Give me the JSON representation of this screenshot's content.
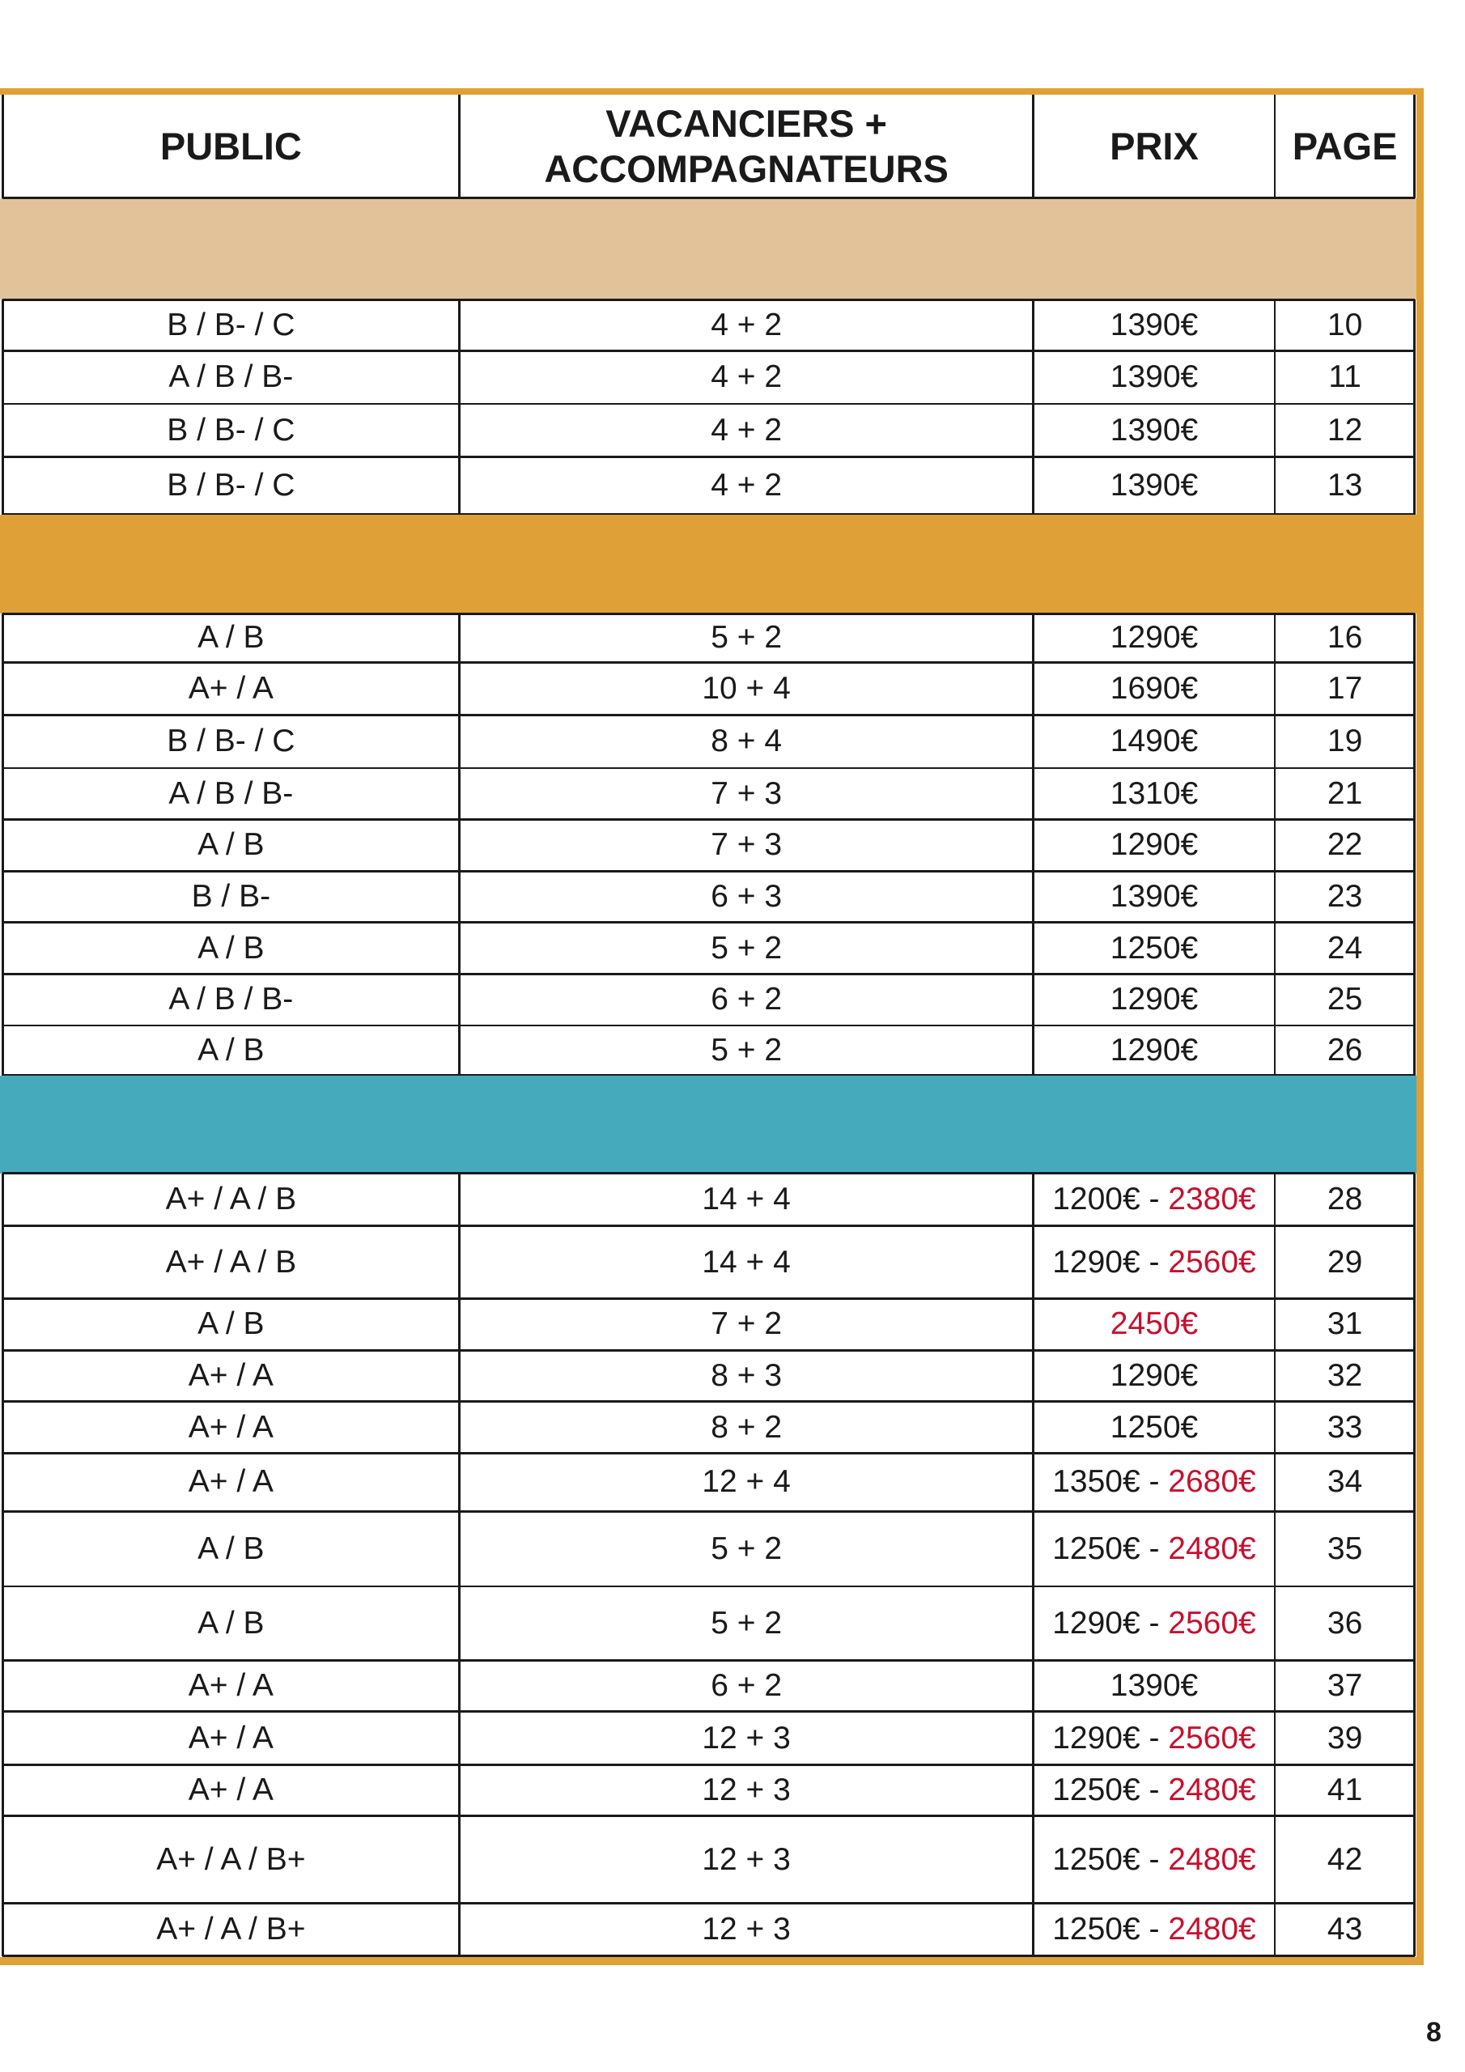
{
  "header": {
    "columns": [
      "PUBLIC",
      "VACANCIERS + ACCOMPAGNATEURS",
      "PRIX",
      "PAGE"
    ]
  },
  "sections": [
    {
      "band_color": "#e2c399",
      "rows": [
        {
          "public": "B / B- / C",
          "group": "4 + 2",
          "price": [
            {
              "text": "1390€"
            }
          ],
          "page": "10"
        },
        {
          "public": "A / B / B-",
          "group": "4 + 2",
          "price": [
            {
              "text": "1390€"
            }
          ],
          "page": "11"
        },
        {
          "public": "B / B- / C",
          "group": "4 + 2",
          "price": [
            {
              "text": "1390€"
            }
          ],
          "page": "12"
        },
        {
          "public": "B / B- / C",
          "group": "4 + 2",
          "price": [
            {
              "text": "1390€"
            }
          ],
          "page": "13"
        }
      ]
    },
    {
      "band_color": "#e0a038",
      "rows": [
        {
          "public": "A / B",
          "group": "5 + 2",
          "price": [
            {
              "text": "1290€"
            }
          ],
          "page": "16"
        },
        {
          "public": "A+ / A",
          "group": "10 + 4",
          "price": [
            {
              "text": "1690€"
            }
          ],
          "page": "17"
        },
        {
          "public": "B / B- / C",
          "group": "8 + 4",
          "price": [
            {
              "text": "1490€"
            }
          ],
          "page": "19"
        },
        {
          "public": "A / B / B-",
          "group": "7 + 3",
          "price": [
            {
              "text": "1310€"
            }
          ],
          "page": "21"
        },
        {
          "public": "A / B",
          "group": "7 + 3",
          "price": [
            {
              "text": "1290€"
            }
          ],
          "page": "22"
        },
        {
          "public": "B / B-",
          "group": "6 + 3",
          "price": [
            {
              "text": "1390€"
            }
          ],
          "page": "23"
        },
        {
          "public": "A / B",
          "group": "5 + 2",
          "price": [
            {
              "text": "1250€"
            }
          ],
          "page": "24"
        },
        {
          "public": "A / B / B-",
          "group": "6 + 2",
          "price": [
            {
              "text": "1290€"
            }
          ],
          "page": "25"
        },
        {
          "public": "A / B",
          "group": "5 + 2",
          "price": [
            {
              "text": "1290€"
            }
          ],
          "page": "26"
        }
      ]
    },
    {
      "band_color": "#46aabd",
      "rows": [
        {
          "public": "A+ / A / B",
          "group": "14 + 4",
          "price": [
            {
              "text": "1200€ - "
            },
            {
              "text": "2380€",
              "highlight": true
            }
          ],
          "page": "28"
        },
        {
          "public": "A+ / A / B",
          "group": "14 + 4",
          "price": [
            {
              "text": "1290€ - "
            },
            {
              "text": "2560€",
              "highlight": true
            }
          ],
          "page": "29"
        },
        {
          "public": "A / B",
          "group": "7 + 2",
          "price": [
            {
              "text": "2450€",
              "highlight": true
            }
          ],
          "page": "31"
        },
        {
          "public": "A+ / A",
          "group": "8 + 3",
          "price": [
            {
              "text": "1290€"
            }
          ],
          "page": "32"
        },
        {
          "public": "A+ / A",
          "group": "8 + 2",
          "price": [
            {
              "text": "1250€"
            }
          ],
          "page": "33"
        },
        {
          "public": "A+ / A",
          "group": "12 + 4",
          "price": [
            {
              "text": "1350€ - "
            },
            {
              "text": "2680€",
              "highlight": true
            }
          ],
          "page": "34"
        },
        {
          "public": "A / B",
          "group": "5 + 2",
          "price": [
            {
              "text": "1250€ - "
            },
            {
              "text": "2480€",
              "highlight": true
            }
          ],
          "page": "35"
        },
        {
          "public": "A / B",
          "group": "5 + 2",
          "price": [
            {
              "text": "1290€ - "
            },
            {
              "text": "2560€",
              "highlight": true
            }
          ],
          "page": "36"
        },
        {
          "public": "A+ / A",
          "group": "6 + 2",
          "price": [
            {
              "text": "1390€"
            }
          ],
          "page": "37"
        },
        {
          "public": "A+ / A",
          "group": "12 + 3",
          "price": [
            {
              "text": "1290€ - "
            },
            {
              "text": "2560€",
              "highlight": true
            }
          ],
          "page": "39"
        },
        {
          "public": "A+ / A",
          "group": "12 + 3",
          "price": [
            {
              "text": "1250€ - "
            },
            {
              "text": "2480€",
              "highlight": true
            }
          ],
          "page": "41"
        },
        {
          "public": "A+ / A / B+",
          "group": "12 + 3",
          "price": [
            {
              "text": "1250€ - "
            },
            {
              "text": "2480€",
              "highlight": true
            }
          ],
          "page": "42"
        },
        {
          "public": "A+ / A / B+",
          "group": "12 + 3",
          "price": [
            {
              "text": "1250€ - "
            },
            {
              "text": "2480€",
              "highlight": true
            }
          ],
          "page": "43"
        }
      ]
    }
  ],
  "page_number": "8"
}
